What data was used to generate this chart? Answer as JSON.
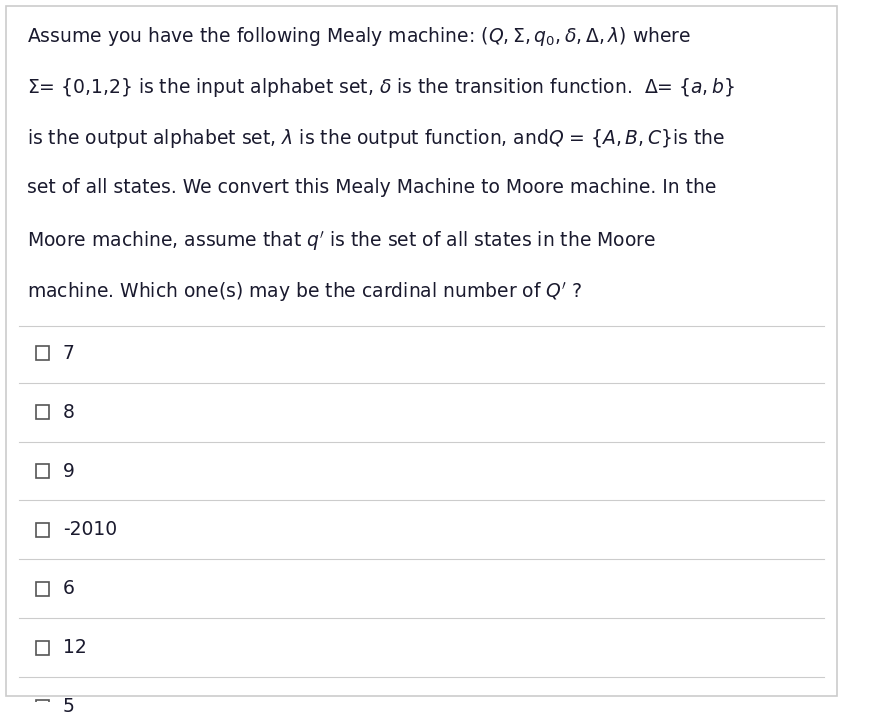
{
  "background_color": "#ffffff",
  "border_color": "#cccccc",
  "text_color": "#1a1a2e",
  "options": [
    "7",
    "8",
    "9",
    "-2010",
    "6",
    "12",
    "5"
  ],
  "checkbox_color": "#555555",
  "separator_color": "#cccccc",
  "font_size_question": 13.5,
  "font_size_options": 13.5,
  "figsize": [
    8.86,
    7.15
  ],
  "dpi": 100
}
